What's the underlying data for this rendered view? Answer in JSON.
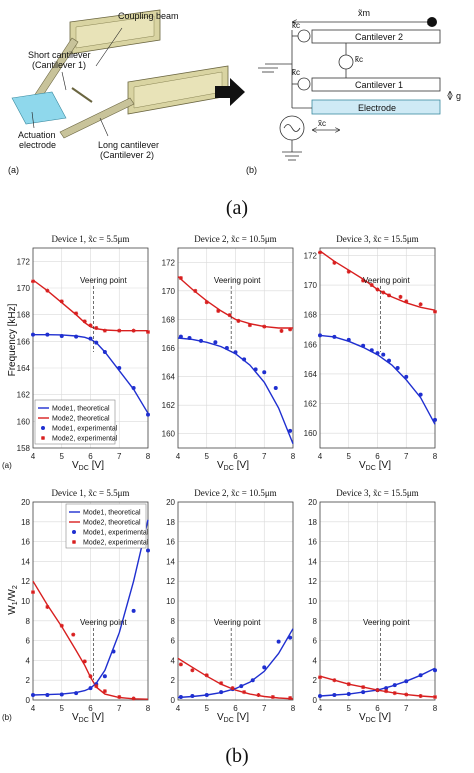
{
  "schematic": {
    "device_labels": {
      "coupling_beam": "Coupling beam",
      "short_cantilever_line1": "Short cantilever",
      "short_cantilever_line2": "(Cantilever 1)",
      "actuation_line1": "Actuation",
      "actuation_line2": "electrode",
      "long_cantilever_line1": "Long cantilever",
      "long_cantilever_line2": "(Cantilever 2)",
      "panel_a": "(a)"
    },
    "model_labels": {
      "xm": "x̃m",
      "kc_top": "k̃c",
      "kc_mid": "k̃c",
      "kc_bot": "k̃c",
      "cantilever2": "Cantilever 2",
      "cantilever1": "Cantilever 1",
      "electrode": "Electrode",
      "g": "g",
      "xc": "x̃c",
      "panel_b": "(b)"
    }
  },
  "captions": {
    "a": "(a)",
    "b": "(b)"
  },
  "frequency_row": {
    "ylabel": "Frequency [kHz]",
    "panel_tag": "(a)",
    "xlabel_main": "V",
    "xlabel_sub": "DC",
    "xlabel_unit": "[V]"
  },
  "ratio_row": {
    "ylabel_main": "W",
    "ylabel_sub1": "1",
    "ylabel_slash": "/W",
    "ylabel_sub2": "2",
    "panel_tag": "(b)",
    "xlabel_main": "V",
    "xlabel_sub": "DC",
    "xlabel_unit": "[V]"
  },
  "legend_entries": [
    "Mode1, theoretical",
    "Mode2, theoretical",
    "Mode1, experimental",
    "Mode2, experimental"
  ],
  "colors": {
    "mode1": "#1f2fd0",
    "mode2": "#d81f1f",
    "grid": "#d9d9d9",
    "axis": "#444444"
  },
  "chart_data": [
    {
      "type": "line",
      "title": "Device 1, x̃c = 5.5μm",
      "xlim": [
        4,
        8
      ],
      "ylim": [
        158,
        173
      ],
      "xticks": [
        4,
        5,
        6,
        7,
        8
      ],
      "yticks": [
        158,
        160,
        162,
        164,
        166,
        168,
        170,
        172
      ],
      "grid": true,
      "legend": "bottom-left",
      "annotation": {
        "text": "Veering point",
        "x": 6.1
      },
      "series": [
        {
          "name": "Mode1, theoretical",
          "kind": "line",
          "x": [
            4,
            4.5,
            5,
            5.5,
            5.8,
            6.0,
            6.2,
            6.5,
            7.0,
            7.5,
            8.0
          ],
          "y": [
            166.5,
            166.5,
            166.48,
            166.4,
            166.3,
            166.15,
            165.9,
            165.2,
            163.8,
            162.4,
            160.6
          ]
        },
        {
          "name": "Mode2, theoretical",
          "kind": "line",
          "x": [
            4,
            4.5,
            5,
            5.5,
            5.8,
            6.0,
            6.2,
            6.5,
            7.0,
            7.5,
            8.0
          ],
          "y": [
            170.6,
            169.8,
            168.9,
            168.0,
            167.4,
            167.1,
            166.95,
            166.85,
            166.8,
            166.8,
            166.8
          ]
        },
        {
          "name": "Mode1, experimental",
          "kind": "scatter",
          "x": [
            4,
            4.5,
            5,
            5.5,
            6.0,
            6.2,
            6.5,
            7.0,
            7.5,
            8.0
          ],
          "y": [
            166.5,
            166.5,
            166.4,
            166.35,
            166.2,
            165.9,
            165.2,
            164.0,
            162.5,
            160.5
          ]
        },
        {
          "name": "Mode2, experimental",
          "kind": "scatter",
          "x": [
            4,
            4.5,
            5,
            5.5,
            5.8,
            6.0,
            6.2,
            6.5,
            7.0,
            7.5,
            8.0
          ],
          "y": [
            170.5,
            169.8,
            169.0,
            168.1,
            167.5,
            167.2,
            167.0,
            166.8,
            166.8,
            166.8,
            166.7
          ]
        }
      ]
    },
    {
      "type": "line",
      "title": "Device 2, x̃c = 10.5μm",
      "xlim": [
        4,
        8
      ],
      "ylim": [
        159,
        173
      ],
      "xticks": [
        4,
        5,
        6,
        7,
        8
      ],
      "yticks": [
        160,
        162,
        164,
        166,
        168,
        170,
        172
      ],
      "grid": true,
      "annotation": {
        "text": "Veering point",
        "x": 5.85
      },
      "series": [
        {
          "name": "Mode1, theoretical",
          "kind": "line",
          "x": [
            4,
            4.5,
            5,
            5.5,
            6.0,
            6.5,
            7.0,
            7.5,
            8.0
          ],
          "y": [
            166.7,
            166.6,
            166.4,
            166.1,
            165.6,
            164.8,
            163.6,
            161.8,
            159.3
          ]
        },
        {
          "name": "Mode2, theoretical",
          "kind": "line",
          "x": [
            4,
            4.5,
            5,
            5.5,
            6.0,
            6.5,
            7.0,
            7.5,
            8.0
          ],
          "y": [
            171.0,
            170.1,
            169.3,
            168.6,
            168.0,
            167.7,
            167.5,
            167.4,
            167.4
          ]
        },
        {
          "name": "Mode1, experimental",
          "kind": "scatter",
          "x": [
            4.1,
            4.4,
            4.8,
            5.3,
            5.7,
            6.0,
            6.3,
            6.7,
            7.0,
            7.4,
            7.9
          ],
          "y": [
            166.8,
            166.7,
            166.5,
            166.4,
            166.0,
            165.7,
            165.2,
            164.5,
            164.3,
            163.2,
            160.2
          ]
        },
        {
          "name": "Mode2, experimental",
          "kind": "scatter",
          "x": [
            4.1,
            4.6,
            5.0,
            5.4,
            5.8,
            6.1,
            6.5,
            7.0,
            7.6,
            7.9
          ],
          "y": [
            170.9,
            170.0,
            169.2,
            168.6,
            168.3,
            167.9,
            167.6,
            167.5,
            167.2,
            167.3
          ]
        }
      ]
    },
    {
      "type": "line",
      "title": "Device 3, x̃c = 15.5μm",
      "xlim": [
        4,
        8
      ],
      "ylim": [
        159,
        172.5
      ],
      "xticks": [
        4,
        5,
        6,
        7,
        8
      ],
      "yticks": [
        160,
        162,
        164,
        166,
        168,
        170,
        172
      ],
      "grid": true,
      "annotation": {
        "text": "Veering point",
        "x": 6.1
      },
      "series": [
        {
          "name": "Mode1, theoretical",
          "kind": "line",
          "x": [
            4,
            4.5,
            5,
            5.5,
            6.0,
            6.5,
            7.0,
            7.5,
            8.0
          ],
          "y": [
            166.6,
            166.5,
            166.2,
            165.8,
            165.3,
            164.6,
            163.6,
            162.4,
            160.6
          ]
        },
        {
          "name": "Mode2, theoretical",
          "kind": "line",
          "x": [
            4,
            4.5,
            5,
            5.5,
            6.0,
            6.5,
            7.0,
            7.5,
            8.0
          ],
          "y": [
            172.3,
            171.6,
            171.0,
            170.4,
            169.7,
            169.2,
            168.8,
            168.5,
            168.3
          ]
        },
        {
          "name": "Mode1, experimental",
          "kind": "scatter",
          "x": [
            4.0,
            4.5,
            5.0,
            5.5,
            5.8,
            6.0,
            6.2,
            6.4,
            6.7,
            7.0,
            7.5,
            8.0
          ],
          "y": [
            166.6,
            166.5,
            166.3,
            165.9,
            165.6,
            165.4,
            165.3,
            164.9,
            164.4,
            163.8,
            162.6,
            160.9
          ]
        },
        {
          "name": "Mode2, experimental",
          "kind": "scatter",
          "x": [
            4.0,
            4.5,
            5.0,
            5.5,
            5.8,
            6.0,
            6.2,
            6.4,
            6.8,
            7.0,
            7.5,
            8.0
          ],
          "y": [
            172.2,
            171.5,
            170.9,
            170.3,
            170.0,
            169.7,
            169.5,
            169.3,
            169.2,
            168.9,
            168.7,
            168.2
          ]
        }
      ]
    },
    {
      "type": "line",
      "title": "Device 1, x̃c = 5.5μm",
      "xlim": [
        4,
        8
      ],
      "ylim": [
        0,
        20
      ],
      "xticks": [
        4,
        5,
        6,
        7,
        8
      ],
      "yticks": [
        0,
        2,
        4,
        6,
        8,
        10,
        12,
        14,
        16,
        18,
        20
      ],
      "grid": true,
      "legend": "top-right",
      "annotation": {
        "text": "Veering point",
        "x": 6.1
      },
      "series": [
        {
          "name": "Mode1, theoretical",
          "kind": "line",
          "x": [
            4,
            4.5,
            5,
            5.5,
            5.8,
            6.0,
            6.2,
            6.5,
            7.0,
            7.5,
            8.0
          ],
          "y": [
            0.5,
            0.55,
            0.6,
            0.75,
            0.95,
            1.2,
            1.7,
            3.0,
            6.8,
            12.0,
            18.2
          ]
        },
        {
          "name": "Mode2, theoretical",
          "kind": "line",
          "x": [
            4,
            4.5,
            5,
            5.5,
            5.8,
            6.0,
            6.2,
            6.5,
            7.0,
            7.5,
            8.0
          ],
          "y": [
            12.0,
            9.6,
            7.4,
            5.0,
            3.5,
            2.3,
            1.3,
            0.6,
            0.25,
            0.12,
            0.08
          ]
        },
        {
          "name": "Mode1, experimental",
          "kind": "scatter",
          "x": [
            4.0,
            4.5,
            5.0,
            5.5,
            6.0,
            6.2,
            6.5,
            6.8,
            7.5,
            8.0
          ],
          "y": [
            0.5,
            0.5,
            0.55,
            0.7,
            1.2,
            1.6,
            2.4,
            4.9,
            9.0,
            15.1
          ]
        },
        {
          "name": "Mode2, experimental",
          "kind": "scatter",
          "x": [
            4.0,
            4.5,
            5.0,
            5.4,
            5.8,
            6.0,
            6.2,
            6.5,
            7.0,
            7.5
          ],
          "y": [
            10.9,
            9.4,
            7.5,
            6.6,
            3.9,
            2.4,
            1.4,
            0.9,
            0.3,
            0.15
          ]
        }
      ]
    },
    {
      "type": "line",
      "title": "Device 2, x̃c = 10.5μm",
      "xlim": [
        4,
        8
      ],
      "ylim": [
        0,
        20
      ],
      "xticks": [
        4,
        5,
        6,
        7,
        8
      ],
      "yticks": [
        0,
        2,
        4,
        6,
        8,
        10,
        12,
        14,
        16,
        18,
        20
      ],
      "grid": true,
      "annotation": {
        "text": "Veering point",
        "x": 5.85
      },
      "series": [
        {
          "name": "Mode1, theoretical",
          "kind": "line",
          "x": [
            4,
            4.5,
            5,
            5.5,
            6.0,
            6.5,
            7.0,
            7.5,
            8.0
          ],
          "y": [
            0.25,
            0.35,
            0.5,
            0.75,
            1.15,
            1.8,
            2.9,
            4.7,
            7.2
          ]
        },
        {
          "name": "Mode2, theoretical",
          "kind": "line",
          "x": [
            4,
            4.5,
            5,
            5.5,
            6.0,
            6.5,
            7.0,
            7.5,
            8.0
          ],
          "y": [
            4.2,
            3.3,
            2.4,
            1.6,
            1.0,
            0.6,
            0.35,
            0.2,
            0.12
          ]
        },
        {
          "name": "Mode1, experimental",
          "kind": "scatter",
          "x": [
            4.1,
            4.5,
            5.0,
            5.5,
            5.9,
            6.2,
            6.6,
            7.0,
            7.5,
            7.9
          ],
          "y": [
            0.3,
            0.4,
            0.5,
            0.8,
            1.1,
            1.4,
            2.0,
            3.3,
            5.9,
            6.3
          ]
        },
        {
          "name": "Mode2, experimental",
          "kind": "scatter",
          "x": [
            4.1,
            4.5,
            5.0,
            5.5,
            5.9,
            6.3,
            6.8,
            7.3,
            7.9
          ],
          "y": [
            3.6,
            3.0,
            2.5,
            1.7,
            1.2,
            0.8,
            0.5,
            0.3,
            0.2
          ]
        }
      ]
    },
    {
      "type": "line",
      "title": "Device 3, x̃c = 15.5μm",
      "xlim": [
        4,
        8
      ],
      "ylim": [
        0,
        20
      ],
      "xticks": [
        4,
        5,
        6,
        7,
        8
      ],
      "yticks": [
        0,
        2,
        4,
        6,
        8,
        10,
        12,
        14,
        16,
        18,
        20
      ],
      "grid": true,
      "annotation": {
        "text": "Veering point",
        "x": 6.1
      },
      "series": [
        {
          "name": "Mode1, theoretical",
          "kind": "line",
          "x": [
            4,
            4.5,
            5,
            5.5,
            6.0,
            6.5,
            7.0,
            7.5,
            8.0
          ],
          "y": [
            0.4,
            0.5,
            0.6,
            0.8,
            1.0,
            1.4,
            1.9,
            2.5,
            3.2
          ]
        },
        {
          "name": "Mode2, theoretical",
          "kind": "line",
          "x": [
            4,
            4.5,
            5,
            5.5,
            6.0,
            6.5,
            7.0,
            7.5,
            8.0
          ],
          "y": [
            2.4,
            2.0,
            1.6,
            1.3,
            1.0,
            0.75,
            0.55,
            0.4,
            0.3
          ]
        },
        {
          "name": "Mode1, experimental",
          "kind": "scatter",
          "x": [
            4.0,
            4.5,
            5.0,
            5.5,
            6.0,
            6.3,
            6.6,
            7.0,
            7.5,
            8.0
          ],
          "y": [
            0.4,
            0.5,
            0.6,
            0.8,
            1.0,
            1.2,
            1.5,
            1.9,
            2.5,
            3.0
          ]
        },
        {
          "name": "Mode2, experimental",
          "kind": "scatter",
          "x": [
            4.0,
            4.5,
            5.0,
            5.5,
            6.0,
            6.3,
            6.6,
            7.0,
            7.5,
            8.0
          ],
          "y": [
            2.3,
            2.0,
            1.6,
            1.3,
            1.0,
            0.9,
            0.7,
            0.55,
            0.4,
            0.3
          ]
        }
      ]
    }
  ]
}
